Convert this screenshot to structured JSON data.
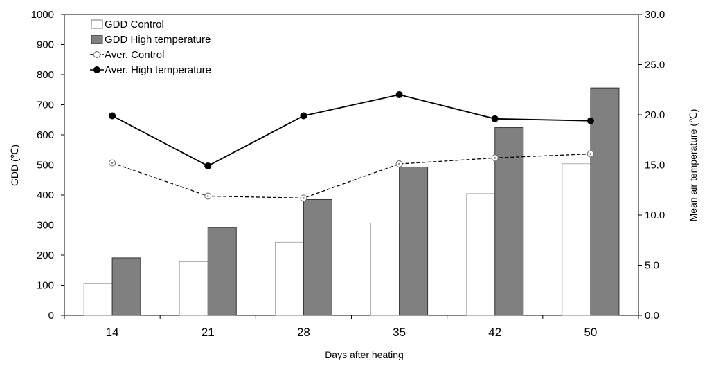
{
  "chart_data": {
    "type": "bar",
    "categories": [
      "14",
      "21",
      "28",
      "35",
      "42",
      "50"
    ],
    "xlabel": "Days after heating",
    "ylabel": "GDD (℃)",
    "y2label": "Mean air temperature (℃)",
    "ylim": [
      0,
      1000
    ],
    "yticks": [
      "0",
      "100",
      "200",
      "300",
      "400",
      "500",
      "600",
      "700",
      "800",
      "900",
      "1000"
    ],
    "y2lim": [
      0,
      30
    ],
    "y2ticks": [
      "0.0",
      "5.0",
      "10.0",
      "15.0",
      "20.0",
      "25.0",
      "30.0"
    ],
    "grid": false,
    "legend_position": "top-left",
    "series": [
      {
        "name": "GDD Control",
        "kind": "bar",
        "axis": "left",
        "color": "#ffffff",
        "values": [
          105,
          178,
          243,
          307,
          405,
          504
        ]
      },
      {
        "name": "GDD High temperature",
        "kind": "bar",
        "axis": "left",
        "color": "#808080",
        "values": [
          191,
          292,
          385,
          493,
          624,
          756
        ]
      },
      {
        "name": "Aver. Control",
        "kind": "line",
        "axis": "right",
        "color": "#000000",
        "dashed": true,
        "marker": "open-circle",
        "values": [
          15.2,
          11.9,
          11.7,
          15.1,
          15.7,
          16.1
        ]
      },
      {
        "name": "Aver. High temperature",
        "kind": "line",
        "axis": "right",
        "color": "#000000",
        "dashed": false,
        "marker": "filled-circle",
        "values": [
          19.9,
          14.9,
          19.9,
          22.0,
          19.6,
          19.4
        ]
      }
    ]
  }
}
